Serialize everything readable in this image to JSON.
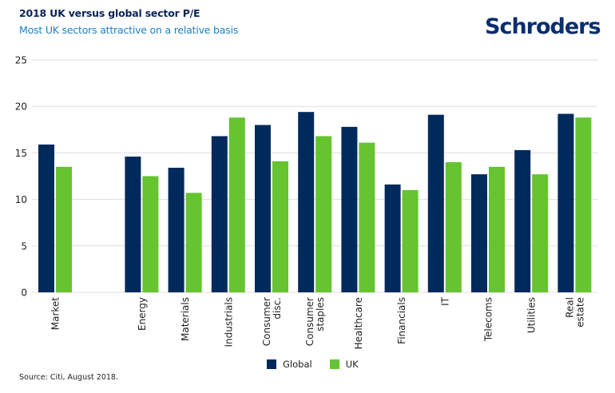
{
  "header": {
    "title": "2018 UK versus global sector P/E",
    "subtitle": "Most UK sectors attractive on a relative basis",
    "logo": "Schroders"
  },
  "footer": {
    "source": "Source: Citi, August 2018."
  },
  "colors": {
    "global": "#002a5c",
    "uk": "#65c430",
    "grid": "#dddddd",
    "title": "#0a2457",
    "subtitle": "#1d7fc1"
  },
  "chart_data": {
    "type": "bar",
    "title": "2018 UK versus global sector P/E",
    "subtitle": "Most UK sectors attractive on a relative basis",
    "xlabel": "",
    "ylabel": "",
    "ylim": [
      0,
      25
    ],
    "yticks": [
      0,
      5,
      10,
      15,
      20,
      25
    ],
    "grid": true,
    "legend_position": "bottom-center",
    "categories": [
      "Market",
      "",
      "Energy",
      "Materials",
      "Industrials",
      "Consumer\ndisc.",
      "Consumer\nstaples",
      "Healthcare",
      "Financials",
      "IT",
      "Telecoms",
      "Utilities",
      "Real\nestate"
    ],
    "series": [
      {
        "name": "Global",
        "color": "#002a5c",
        "values": [
          15.9,
          null,
          14.6,
          13.4,
          16.8,
          18.0,
          19.4,
          17.8,
          11.6,
          19.1,
          12.7,
          15.3,
          19.2
        ]
      },
      {
        "name": "UK",
        "color": "#65c430",
        "values": [
          13.5,
          null,
          12.5,
          10.7,
          18.8,
          14.1,
          16.8,
          16.1,
          11.0,
          14.0,
          13.5,
          12.7,
          18.8
        ]
      }
    ]
  }
}
